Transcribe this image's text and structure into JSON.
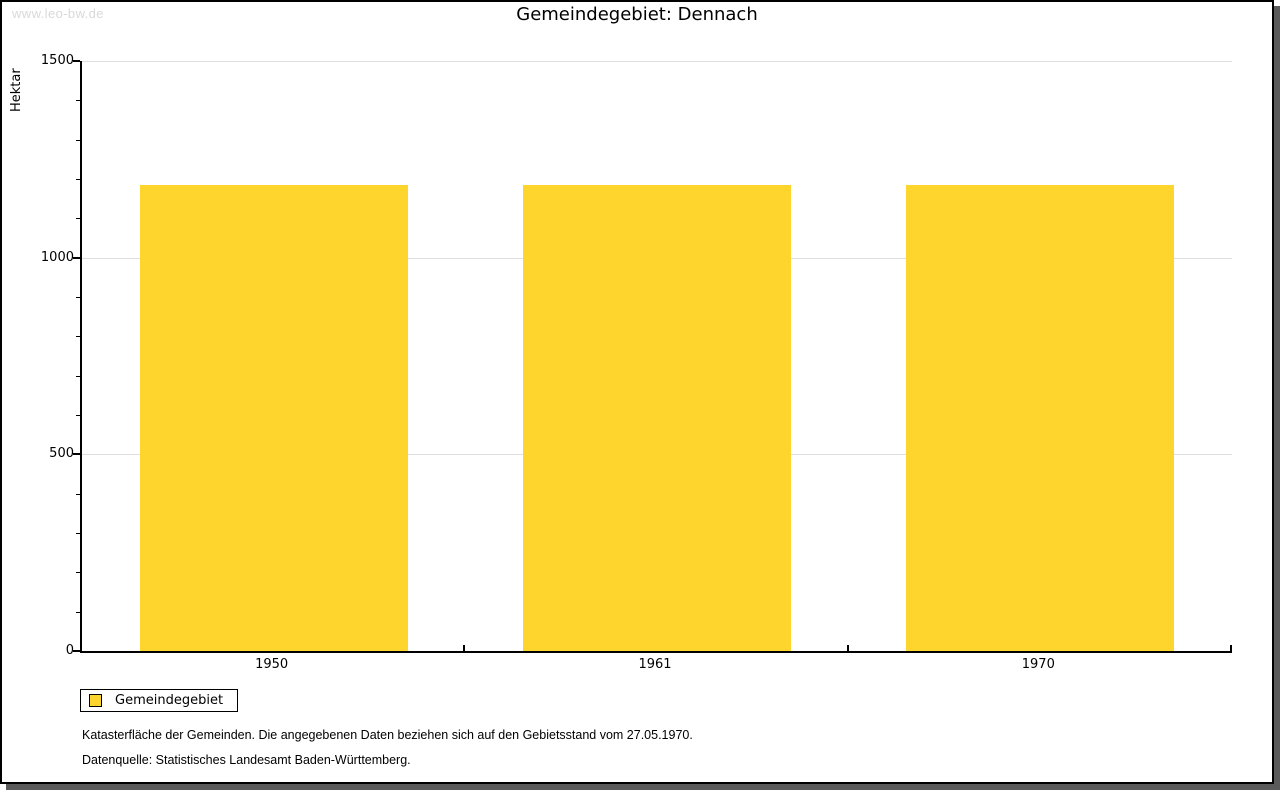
{
  "watermark": "www.leo-bw.de",
  "title": "Gemeindegebiet: Dennach",
  "chart_data": {
    "type": "bar",
    "categories": [
      "1950",
      "1961",
      "1970"
    ],
    "values": [
      1185,
      1185,
      1185
    ],
    "series": [
      {
        "name": "Gemeindegebiet",
        "values": [
          1185,
          1185,
          1185
        ]
      }
    ],
    "title": "Gemeindegebiet: Dennach",
    "xlabel": "",
    "ylabel": "Hektar",
    "ylim": [
      0,
      1500
    ],
    "ytick_step": 500,
    "minor_tick_step": 100,
    "yticks": [
      0,
      500,
      1000,
      1500
    ],
    "grid": true,
    "legend_position": "bottom-left",
    "bar_color": "#FDD52D"
  },
  "legend": {
    "items": [
      {
        "label": "Gemeindegebiet",
        "color": "#FDD52D"
      }
    ]
  },
  "footnotes": [
    "Katasterfläche der Gemeinden. Die angegebenen Daten beziehen sich auf den Gebietsstand vom 27.05.1970.",
    "Datenquelle: Statistisches Landesamt Baden-Württemberg."
  ],
  "colors": {
    "bar": "#FDD52D",
    "grid": "#dedede",
    "axis": "#000000",
    "watermark": "#d9d9d9",
    "frame_shadow": "#5a5a5a"
  }
}
